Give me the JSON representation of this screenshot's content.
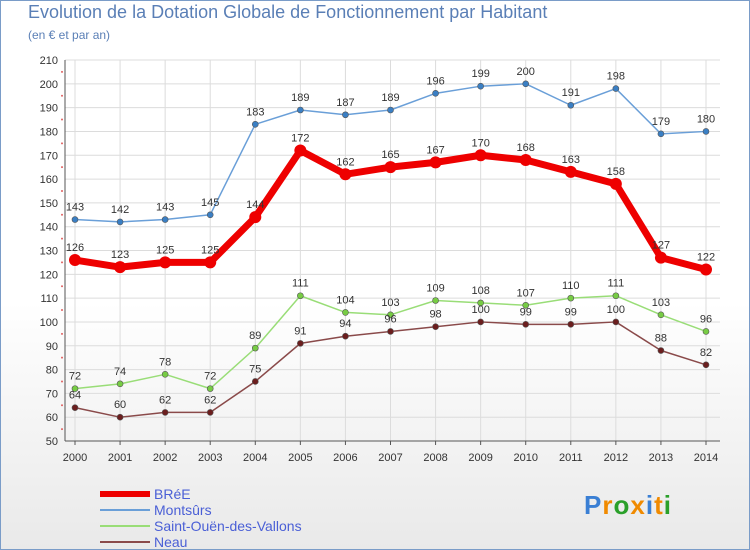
{
  "chart_data": {
    "type": "line",
    "title": "Evolution de la Dotation Globale de Fonctionnement par Habitant",
    "subtitle": "(en € et par an)",
    "xlabel": "",
    "ylabel": "",
    "categories": [
      "2000",
      "2001",
      "2002",
      "2003",
      "2004",
      "2005",
      "2006",
      "2007",
      "2008",
      "2009",
      "2010",
      "2011",
      "2012",
      "2013",
      "2014"
    ],
    "ylim": [
      50,
      210
    ],
    "yticks": [
      50,
      60,
      70,
      80,
      90,
      100,
      110,
      120,
      130,
      140,
      150,
      160,
      170,
      180,
      190,
      200,
      210
    ],
    "grid": true,
    "legend_position": "bottom-left",
    "series": [
      {
        "name": "Montsûrs",
        "color": "#6a9fd8",
        "marker_color": "#3a7fc4",
        "values": [
          143,
          142,
          143,
          145,
          183,
          189,
          187,
          189,
          196,
          199,
          200,
          191,
          198,
          179,
          180
        ],
        "labels": [
          "143",
          "142",
          "143",
          "145",
          "183",
          "189",
          "187",
          "189",
          "196",
          "199",
          "200",
          "191",
          "198",
          "179",
          "180"
        ]
      },
      {
        "name": "BRéE",
        "color": "#ee0000",
        "marker_color": "#ee0000",
        "values": [
          126,
          123,
          125,
          125,
          144,
          172,
          162,
          165,
          167,
          170,
          168,
          163,
          158,
          127,
          122
        ],
        "labels": [
          "126",
          "123",
          "125",
          "125",
          "144",
          "172",
          "162",
          "165",
          "167",
          "170",
          "168",
          "163",
          "158",
          "127",
          "122"
        ]
      },
      {
        "name": "Saint-Ouën-des-Vallons",
        "color": "#99dd77",
        "marker_color": "#77cc44",
        "values": [
          72,
          74,
          78,
          72,
          89,
          111,
          104,
          103,
          109,
          108,
          107,
          110,
          111,
          103,
          96
        ],
        "labels": [
          "72",
          "74",
          "78",
          "72",
          "89",
          "111",
          "104",
          "103",
          "109",
          "108",
          "107",
          "110",
          "111",
          "103",
          "96"
        ]
      },
      {
        "name": "Neau",
        "color": "#8a4a4a",
        "marker_color": "#6b1e1e",
        "values": [
          64,
          60,
          62,
          62,
          75,
          91,
          94,
          96,
          98,
          100,
          99,
          99,
          100,
          88,
          82
        ],
        "labels": [
          "64",
          "60",
          "62",
          "62",
          "75",
          "91",
          "94",
          "96",
          "98",
          "100",
          "99",
          "99",
          "100",
          "88",
          "82"
        ]
      }
    ]
  },
  "legend": [
    {
      "label": "BRéE",
      "color": "#ee0000"
    },
    {
      "label": "Montsûrs",
      "color": "#6a9fd8"
    },
    {
      "label": "Saint-Ouën-des-Vallons",
      "color": "#99dd77"
    },
    {
      "label": "Neau",
      "color": "#8a4a4a"
    }
  ],
  "logo": {
    "text": "Proxiti",
    "colors": [
      "#3a7fd4",
      "#f08a00",
      "#2aa02a",
      "#f08a00",
      "#3a7fd4",
      "#f08a00",
      "#2aa02a"
    ]
  }
}
